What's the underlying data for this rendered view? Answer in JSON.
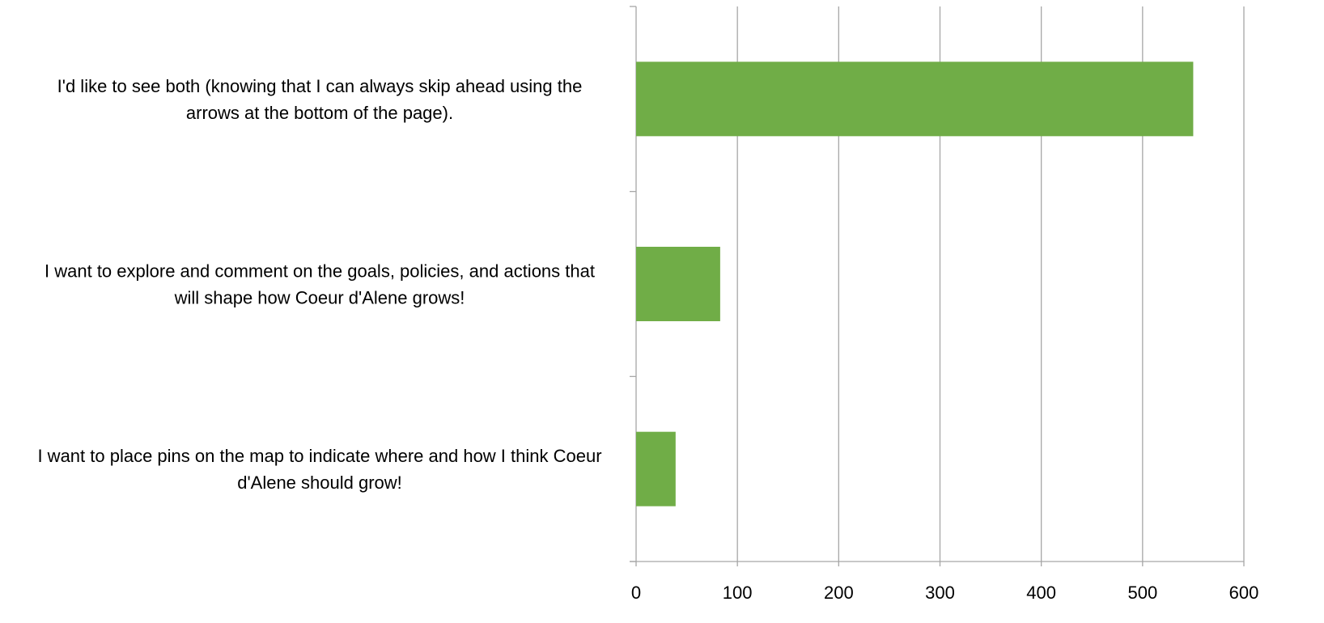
{
  "chart_data": {
    "type": "bar",
    "orientation": "horizontal",
    "categories": [
      [
        "I'd like to see both (knowing that I can always skip ahead using the",
        "arrows at the bottom of the page)."
      ],
      [
        "I want to explore and comment on the goals, policies, and actions that",
        "will shape how Coeur d'Alene grows!"
      ],
      [
        "I want to place pins on the map to indicate where and how I think Coeur",
        "d'Alene should grow!"
      ]
    ],
    "values": [
      550,
      83,
      39
    ],
    "xlim": [
      0,
      600
    ],
    "xticks": [
      "0",
      "100",
      "200",
      "300",
      "400",
      "500",
      "600"
    ],
    "grid": true,
    "legend": "none",
    "bar_color": "#70AD47",
    "grid_color": "#A6A6A6",
    "text_color": "#000000"
  }
}
